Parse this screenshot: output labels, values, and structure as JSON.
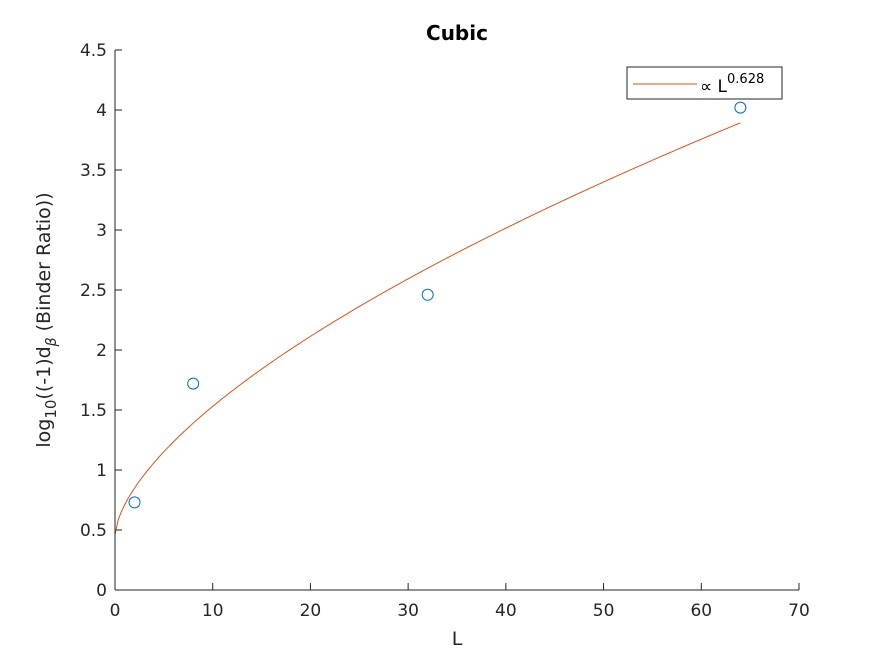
{
  "chart_data": {
    "type": "scatter",
    "title": "Cubic",
    "xlabel": "L",
    "ylabel": {
      "prefix": "log",
      "sub1": "10",
      "mid": "((-1)d",
      "sub2": "β",
      "suffix": " (Binder Ratio))"
    },
    "xlim": [
      0,
      70
    ],
    "ylim": [
      0,
      4.5
    ],
    "xticks": [
      0,
      10,
      20,
      30,
      40,
      50,
      60,
      70
    ],
    "yticks": [
      0,
      0.5,
      1,
      1.5,
      2,
      2.5,
      3,
      3.5,
      4,
      4.5
    ],
    "xtick_labels": [
      "0",
      "10",
      "20",
      "30",
      "40",
      "50",
      "60",
      "70"
    ],
    "ytick_labels": [
      "0",
      "0.5",
      "1",
      "1.5",
      "2",
      "2.5",
      "3",
      "3.5",
      "4",
      "4.5"
    ],
    "grid": false,
    "legend_position": "top-right",
    "series": [
      {
        "kind": "markers",
        "x": [
          2,
          8,
          32,
          64
        ],
        "y": [
          0.73,
          1.72,
          2.46,
          4.02
        ],
        "color": "#0072BD"
      },
      {
        "kind": "fit-line",
        "name_prefix": "∝ L",
        "name_exponent": "0.628",
        "a": 0.46,
        "b": 0.252,
        "exponent": 0.628,
        "x_range": [
          0,
          64
        ],
        "color": "#D95319"
      }
    ]
  }
}
